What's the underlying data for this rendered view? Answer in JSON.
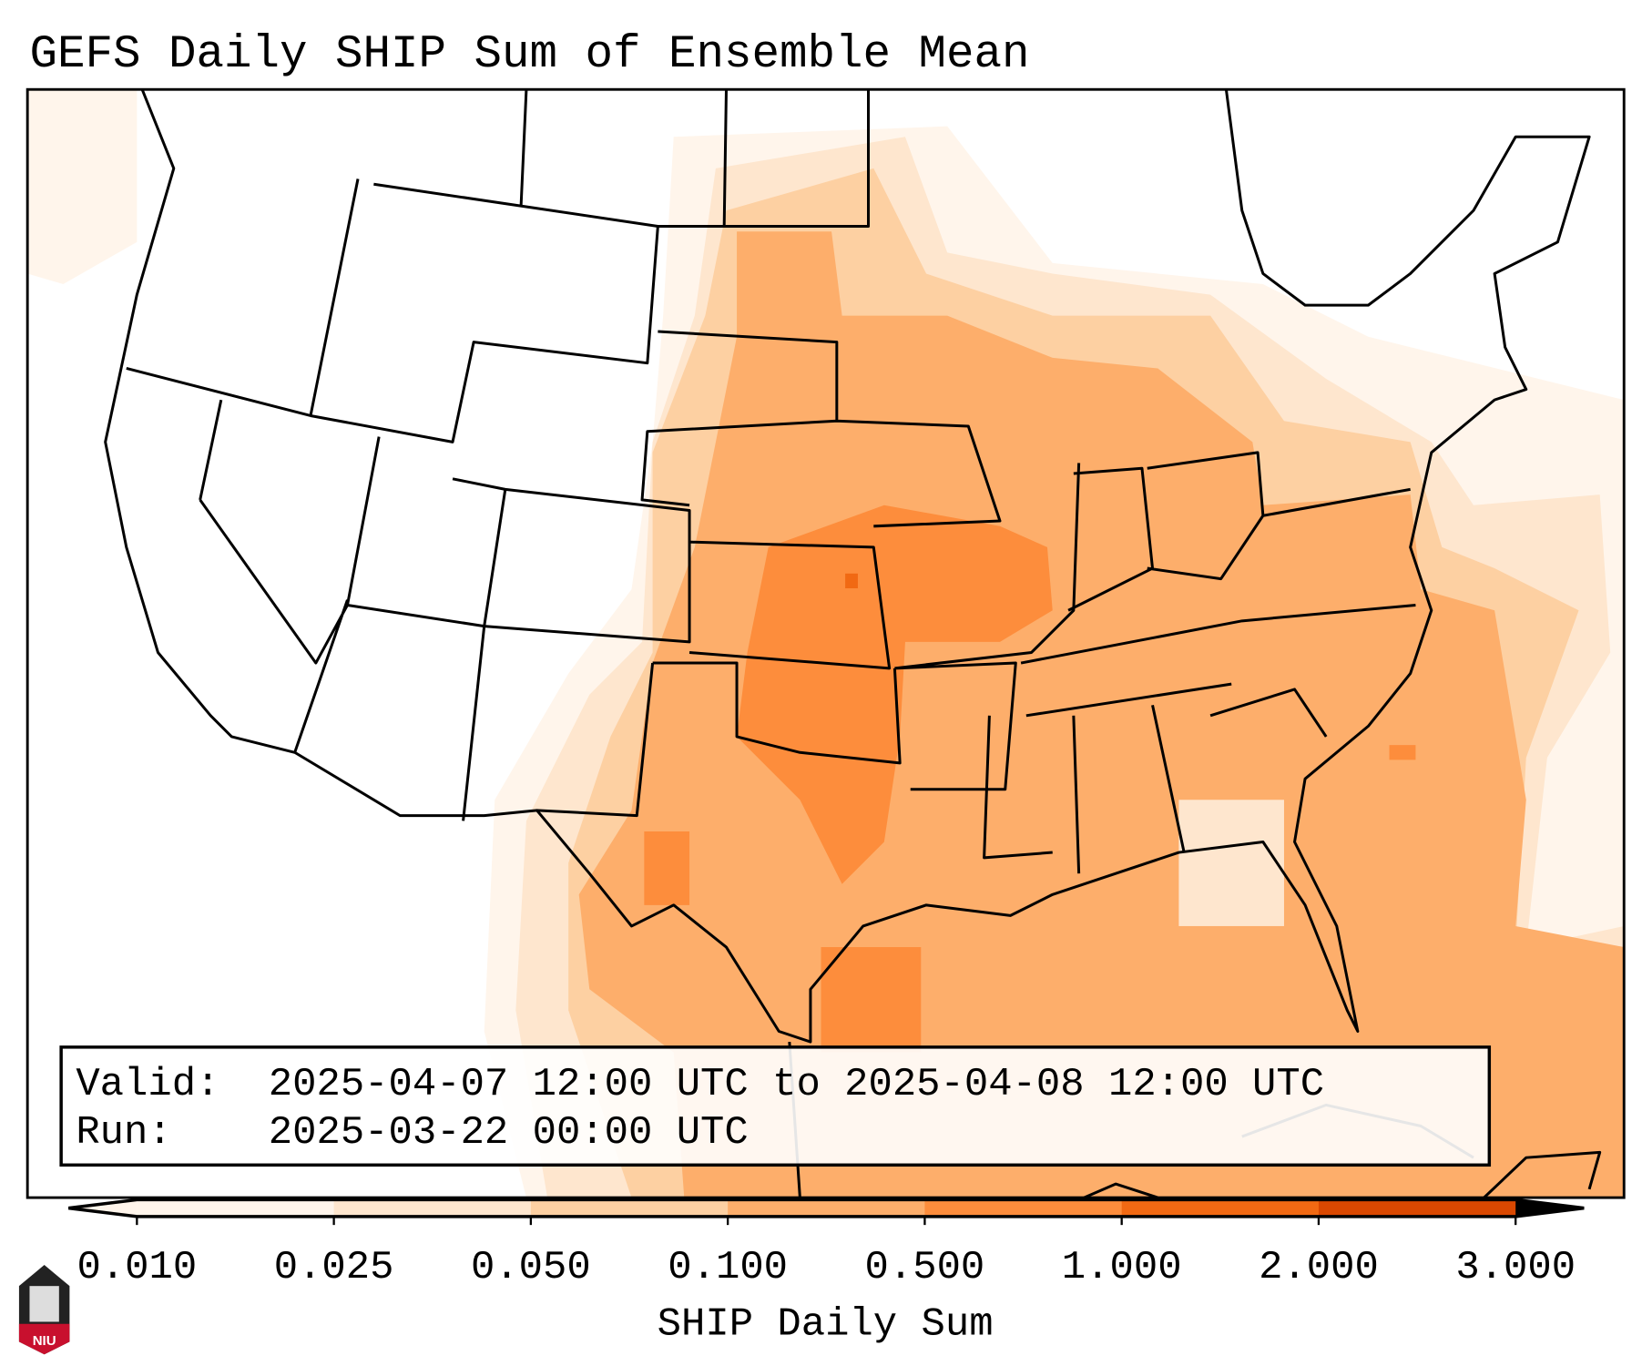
{
  "title": "GEFS Daily SHIP Sum of Ensemble Mean",
  "info_box": {
    "valid_label": "Valid:",
    "valid_value": "2025-04-07 12:00 UTC to 2025-04-08 12:00 UTC",
    "run_label": "Run:",
    "run_value": "2025-03-22 00:00 UTC"
  },
  "colorbar": {
    "label": "SHIP Daily Sum",
    "ticks": [
      "0.010",
      "0.025",
      "0.050",
      "0.100",
      "0.500",
      "1.000",
      "2.000",
      "3.000"
    ],
    "colors": [
      "#fff5eb",
      "#fee6ce",
      "#fdd0a2",
      "#fdae6b",
      "#fd8d3c",
      "#f16913",
      "#d94801",
      "#a63603"
    ]
  },
  "logo": {
    "text": "NIU"
  }
}
